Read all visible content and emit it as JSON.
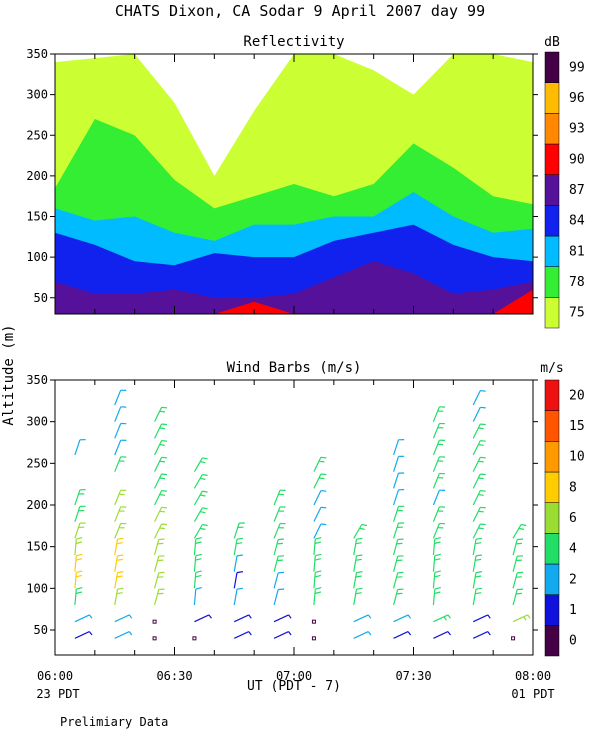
{
  "header": {
    "title": "CHATS Dixon, CA  Sodar    9 April 2007   day  99"
  },
  "shared": {
    "y_axis_label": "Altitude (m)",
    "x_axis_label": "UT  (PDT - 7)",
    "x_ticks": [
      "06:00",
      "06:30",
      "07:00",
      "07:30",
      "08:00"
    ],
    "x_sub_left": "23 PDT",
    "x_sub_right": "01 PDT",
    "footer_note": "Prelimiary Data"
  },
  "colors": {
    "reflectivity_scale": [
      "#ccff33",
      "#33ee33",
      "#00bbff",
      "#1122ee",
      "#551199",
      "#ff0000",
      "#ff8800",
      "#ffbb00",
      "#440044"
    ],
    "wind_scale": [
      "#440044",
      "#1111dd",
      "#11aaee",
      "#22dd66",
      "#99dd33",
      "#ffcc00",
      "#ff9900",
      "#ff5500",
      "#ee1111"
    ]
  },
  "chart_data": [
    {
      "type": "heatmap",
      "title": "Reflectivity",
      "colorbar_unit": "dB",
      "colorbar_labels": [
        "75",
        "78",
        "81",
        "84",
        "87",
        "90",
        "93",
        "96",
        "99"
      ],
      "x_range_minutes_ut": [
        0,
        120
      ],
      "ylim": [
        30,
        350
      ],
      "y_ticks": [
        "50",
        "100",
        "150",
        "200",
        "250",
        "300",
        "350"
      ],
      "x_hours_ut": [
        0,
        0.167,
        0.333,
        0.5,
        0.667,
        0.833,
        1.0,
        1.167,
        1.333,
        1.5,
        1.667,
        1.833,
        2.0
      ],
      "contour_bands": [
        {
          "level_db": 75,
          "top_m": [
            340,
            345,
            350,
            290,
            200,
            280,
            350,
            350,
            330,
            300,
            350,
            350,
            340
          ]
        },
        {
          "level_db": 78,
          "top_m": [
            185,
            270,
            250,
            195,
            160,
            175,
            190,
            175,
            190,
            240,
            210,
            175,
            165
          ]
        },
        {
          "level_db": 81,
          "top_m": [
            160,
            145,
            150,
            130,
            120,
            140,
            140,
            150,
            150,
            180,
            150,
            130,
            135
          ]
        },
        {
          "level_db": 84,
          "top_m": [
            130,
            115,
            95,
            90,
            105,
            100,
            100,
            120,
            130,
            140,
            115,
            100,
            95
          ]
        },
        {
          "level_db": 87,
          "top_m": [
            70,
            55,
            55,
            60,
            50,
            50,
            55,
            75,
            95,
            80,
            55,
            60,
            70
          ]
        },
        {
          "level_db": 90,
          "top_m": [
            30,
            30,
            30,
            30,
            30,
            45,
            30,
            30,
            30,
            30,
            30,
            30,
            60
          ]
        }
      ]
    },
    {
      "type": "scatter",
      "title": "Wind Barbs (m/s)",
      "colorbar_unit": "m/s",
      "colorbar_labels": [
        "0",
        "1",
        "2",
        "4",
        "6",
        "8",
        "10",
        "15",
        "20"
      ],
      "x_range_minutes_ut": [
        0,
        120
      ],
      "ylim": [
        20,
        350
      ],
      "y_ticks": [
        "50",
        "100",
        "150",
        "200",
        "250",
        "300",
        "350"
      ],
      "x_minutes_ut": [
        5,
        15,
        25,
        35,
        45,
        55,
        65,
        75,
        85,
        95,
        105,
        115
      ],
      "heights_m": [
        40,
        60,
        80,
        100,
        120,
        140,
        160,
        180,
        200,
        220,
        240,
        260,
        280,
        300,
        320
      ],
      "speed_profiles_m_s": [
        [
          1,
          2,
          5,
          8,
          8,
          7,
          6,
          5,
          5,
          null,
          null,
          2,
          null,
          null,
          null
        ],
        [
          2,
          2,
          6,
          8,
          9,
          8,
          7,
          6,
          6,
          null,
          4,
          3,
          3,
          3,
          3
        ],
        [
          0.5,
          0.5,
          6,
          7,
          7,
          6,
          6,
          6,
          5,
          5,
          5,
          5,
          5,
          5,
          null
        ],
        [
          0.5,
          1,
          2,
          4,
          5,
          5,
          5,
          5,
          4,
          4,
          4,
          null,
          null,
          null,
          null
        ],
        [
          1,
          1,
          2,
          1,
          3,
          4,
          4,
          null,
          null,
          null,
          null,
          null,
          null,
          null,
          null
        ],
        [
          1,
          1,
          2,
          3,
          4,
          4,
          4,
          4,
          4,
          null,
          null,
          null,
          null,
          null,
          null
        ],
        [
          0.5,
          0.5,
          4,
          4,
          4,
          4,
          3,
          3,
          3,
          4,
          5,
          null,
          null,
          null,
          null
        ],
        [
          2,
          3,
          4,
          4,
          5,
          5,
          5,
          null,
          null,
          null,
          null,
          null,
          null,
          null,
          null
        ],
        [
          1,
          3,
          4,
          5,
          5,
          5,
          5,
          4,
          2,
          2,
          2,
          2,
          null,
          null,
          null
        ],
        [
          1,
          4,
          5,
          5,
          5,
          5,
          4,
          4,
          3,
          4,
          4,
          4,
          4,
          4,
          null
        ],
        [
          1,
          1,
          4,
          5,
          5,
          5,
          5,
          5,
          4,
          5,
          5,
          5,
          5,
          3,
          2
        ],
        [
          0.5,
          6,
          5,
          5,
          5,
          5,
          5,
          null,
          null,
          null,
          null,
          null,
          null,
          null,
          null
        ]
      ]
    }
  ]
}
